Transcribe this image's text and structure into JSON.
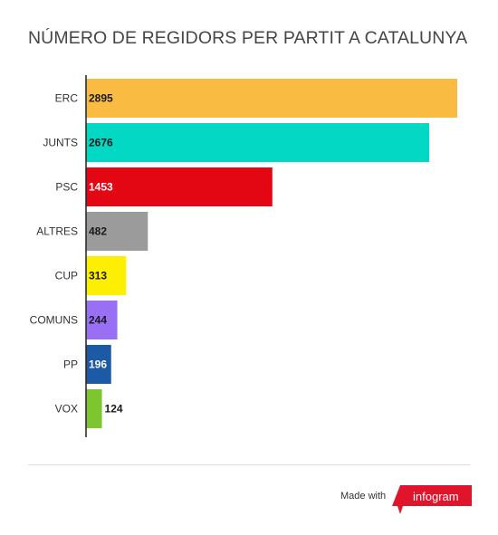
{
  "chart_data": {
    "type": "bar",
    "orientation": "horizontal",
    "title": "NÚMERO DE REGIDORS PER PARTIT A CATALUNYA",
    "categories": [
      "ERC",
      "JUNTS",
      "PSC",
      "ALTRES",
      "CUP",
      "COMUNS",
      "PP",
      "VOX"
    ],
    "values": [
      2895,
      2676,
      1453,
      482,
      313,
      244,
      196,
      124
    ],
    "colors": [
      "#f9bb42",
      "#03d8c4",
      "#e30613",
      "#9b9b9b",
      "#fdef00",
      "#9970f5",
      "#1d5aa5",
      "#7ec62f"
    ],
    "label_colors": [
      "#1a1a1a",
      "#1a1a1a",
      "#ffffff",
      "#1a1a1a",
      "#1a1a1a",
      "#1a1a1a",
      "#ffffff",
      "#1a1a1a"
    ],
    "xlim": [
      0,
      2895
    ],
    "grid": false,
    "legend": "none"
  },
  "footer": {
    "made_with": "Made with",
    "brand": "infogram",
    "brand_color": "#e0142a"
  }
}
